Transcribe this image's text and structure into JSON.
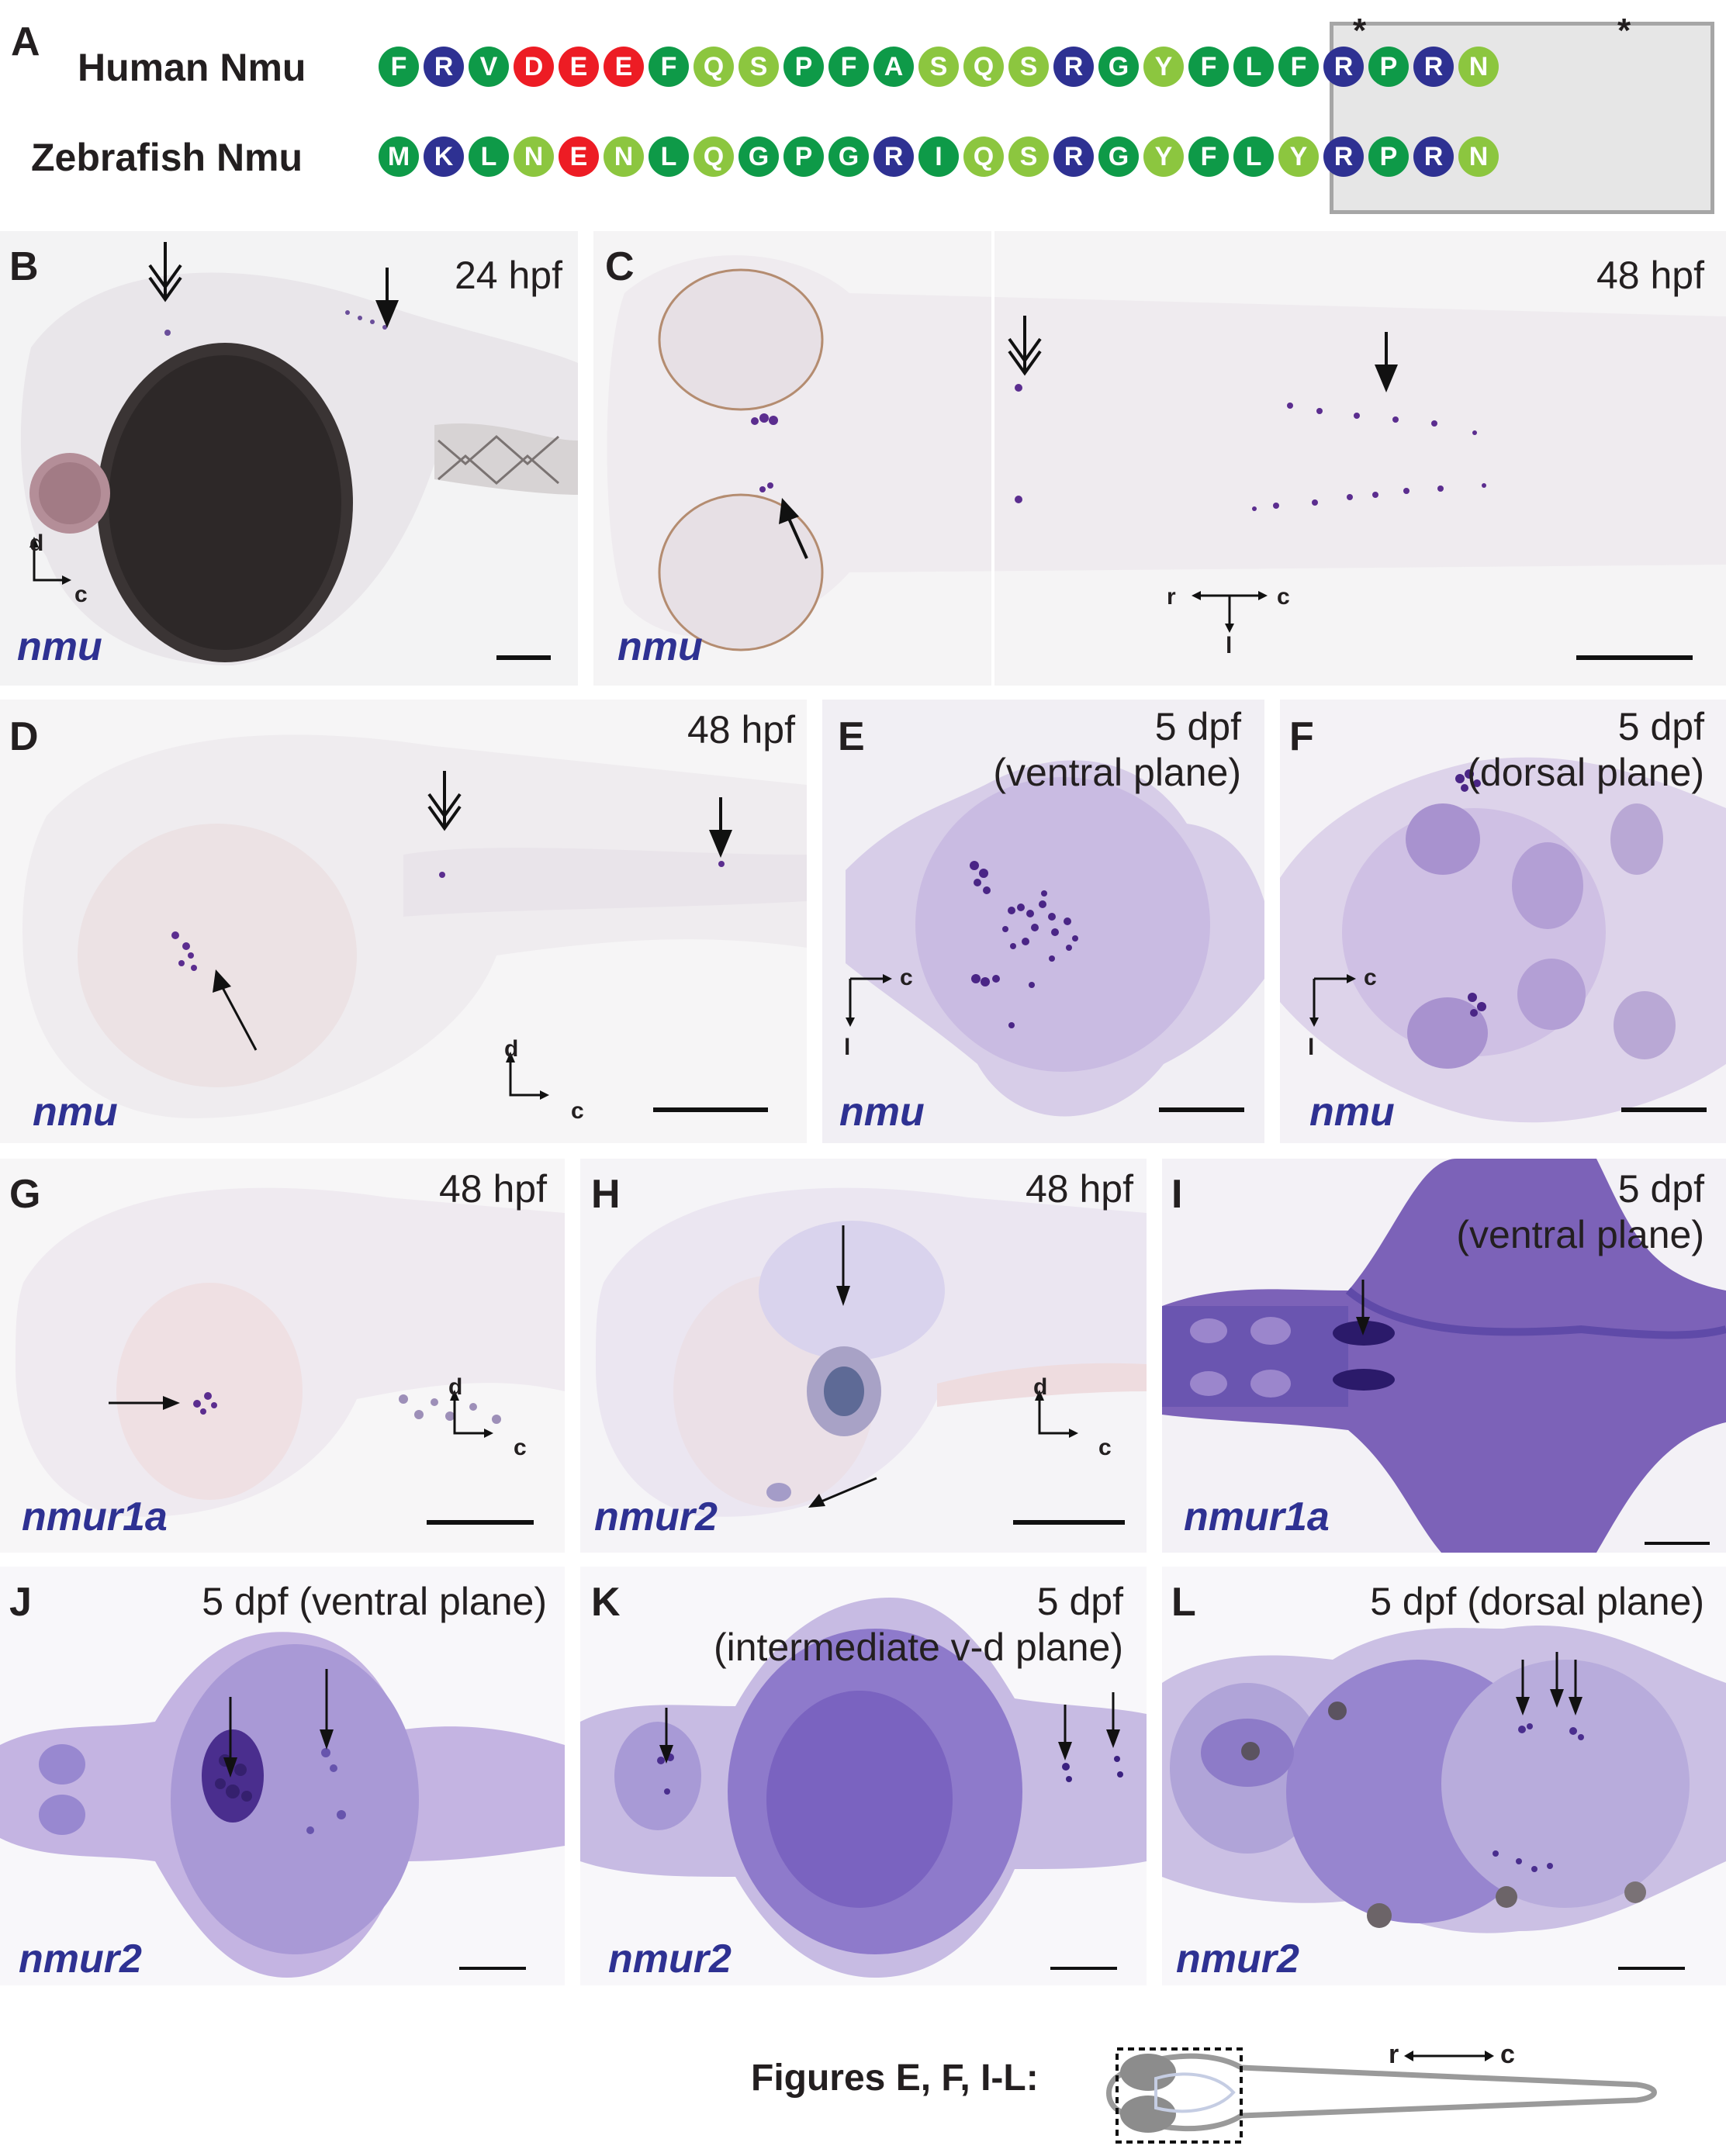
{
  "panelA": {
    "label": "A",
    "rows": [
      {
        "name": "Human Nmu",
        "residues": [
          {
            "aa": "F",
            "c": "dg"
          },
          {
            "aa": "R",
            "c": "bl"
          },
          {
            "aa": "V",
            "c": "dg"
          },
          {
            "aa": "D",
            "c": "rd"
          },
          {
            "aa": "E",
            "c": "rd"
          },
          {
            "aa": "E",
            "c": "rd"
          },
          {
            "aa": "F",
            "c": "dg"
          },
          {
            "aa": "Q",
            "c": "lg"
          },
          {
            "aa": "S",
            "c": "lg"
          },
          {
            "aa": "P",
            "c": "dg"
          },
          {
            "aa": "F",
            "c": "dg"
          },
          {
            "aa": "A",
            "c": "dg"
          },
          {
            "aa": "S",
            "c": "lg"
          },
          {
            "aa": "Q",
            "c": "lg"
          },
          {
            "aa": "S",
            "c": "lg"
          },
          {
            "aa": "R",
            "c": "bl"
          },
          {
            "aa": "G",
            "c": "dg"
          },
          {
            "aa": "Y",
            "c": "lg"
          },
          {
            "aa": "F",
            "c": "dg"
          },
          {
            "aa": "L",
            "c": "dg"
          },
          {
            "aa": "F",
            "c": "dg"
          },
          {
            "aa": "R",
            "c": "bl"
          },
          {
            "aa": "P",
            "c": "dg"
          },
          {
            "aa": "R",
            "c": "bl"
          },
          {
            "aa": "N",
            "c": "lg"
          }
        ]
      },
      {
        "name": "Zebrafish Nmu",
        "residues": [
          {
            "aa": "M",
            "c": "dg"
          },
          {
            "aa": "K",
            "c": "bl"
          },
          {
            "aa": "L",
            "c": "dg"
          },
          {
            "aa": "N",
            "c": "lg"
          },
          {
            "aa": "E",
            "c": "rd"
          },
          {
            "aa": "N",
            "c": "lg"
          },
          {
            "aa": "L",
            "c": "dg"
          },
          {
            "aa": "Q",
            "c": "lg"
          },
          {
            "aa": "G",
            "c": "dg"
          },
          {
            "aa": "P",
            "c": "dg"
          },
          {
            "aa": "G",
            "c": "dg"
          },
          {
            "aa": "R",
            "c": "bl"
          },
          {
            "aa": "I",
            "c": "dg"
          },
          {
            "aa": "Q",
            "c": "lg"
          },
          {
            "aa": "S",
            "c": "lg"
          },
          {
            "aa": "R",
            "c": "bl"
          },
          {
            "aa": "G",
            "c": "dg"
          },
          {
            "aa": "Y",
            "c": "lg"
          },
          {
            "aa": "F",
            "c": "dg"
          },
          {
            "aa": "L",
            "c": "dg"
          },
          {
            "aa": "Y",
            "c": "lg"
          },
          {
            "aa": "R",
            "c": "bl"
          },
          {
            "aa": "P",
            "c": "dg"
          },
          {
            "aa": "R",
            "c": "bl"
          },
          {
            "aa": "N",
            "c": "lg"
          }
        ]
      }
    ],
    "star": "*",
    "colors": {
      "dg": "#0e9a48",
      "lg": "#8cc63f",
      "bl": "#2e3192",
      "rd": "#ed1c24"
    }
  },
  "panels": {
    "B": {
      "label": "B",
      "stage": "24 hpf",
      "gene": "nmu",
      "ax_v": "d",
      "ax_h": "c"
    },
    "C": {
      "label": "C",
      "stage": "48 hpf",
      "gene": "nmu",
      "ax_r": "r",
      "ax_c": "c",
      "ax_l": "l"
    },
    "D": {
      "label": "D",
      "stage": "48 hpf",
      "gene": "nmu",
      "ax_v": "d",
      "ax_h": "c"
    },
    "E": {
      "label": "E",
      "stage1": "5 dpf",
      "stage2": "(ventral plane)",
      "gene": "nmu",
      "ax_c": "c",
      "ax_l": "l"
    },
    "F": {
      "label": "F",
      "stage1": "5 dpf",
      "stage2": "(dorsal plane)",
      "gene": "nmu",
      "ax_c": "c",
      "ax_l": "l"
    },
    "G": {
      "label": "G",
      "stage": "48 hpf",
      "gene": "nmur1a",
      "ax_v": "d",
      "ax_h": "c"
    },
    "H": {
      "label": "H",
      "stage": "48 hpf",
      "gene": "nmur2",
      "ax_v": "d",
      "ax_h": "c"
    },
    "I": {
      "label": "I",
      "stage1": "5 dpf",
      "stage2": "(ventral plane)",
      "gene": "nmur1a"
    },
    "J": {
      "label": "J",
      "stage": "5 dpf (ventral plane)",
      "gene": "nmur2"
    },
    "K": {
      "label": "K",
      "stage1": "5 dpf",
      "stage2": "(intermediate v-d plane)",
      "gene": "nmur2"
    },
    "L": {
      "label": "L",
      "stage": "5 dpf (dorsal plane)",
      "gene": "nmur2"
    }
  },
  "schematic": {
    "caption": "Figures E, F, I-L:",
    "ax_r": "r",
    "ax_c": "c"
  }
}
